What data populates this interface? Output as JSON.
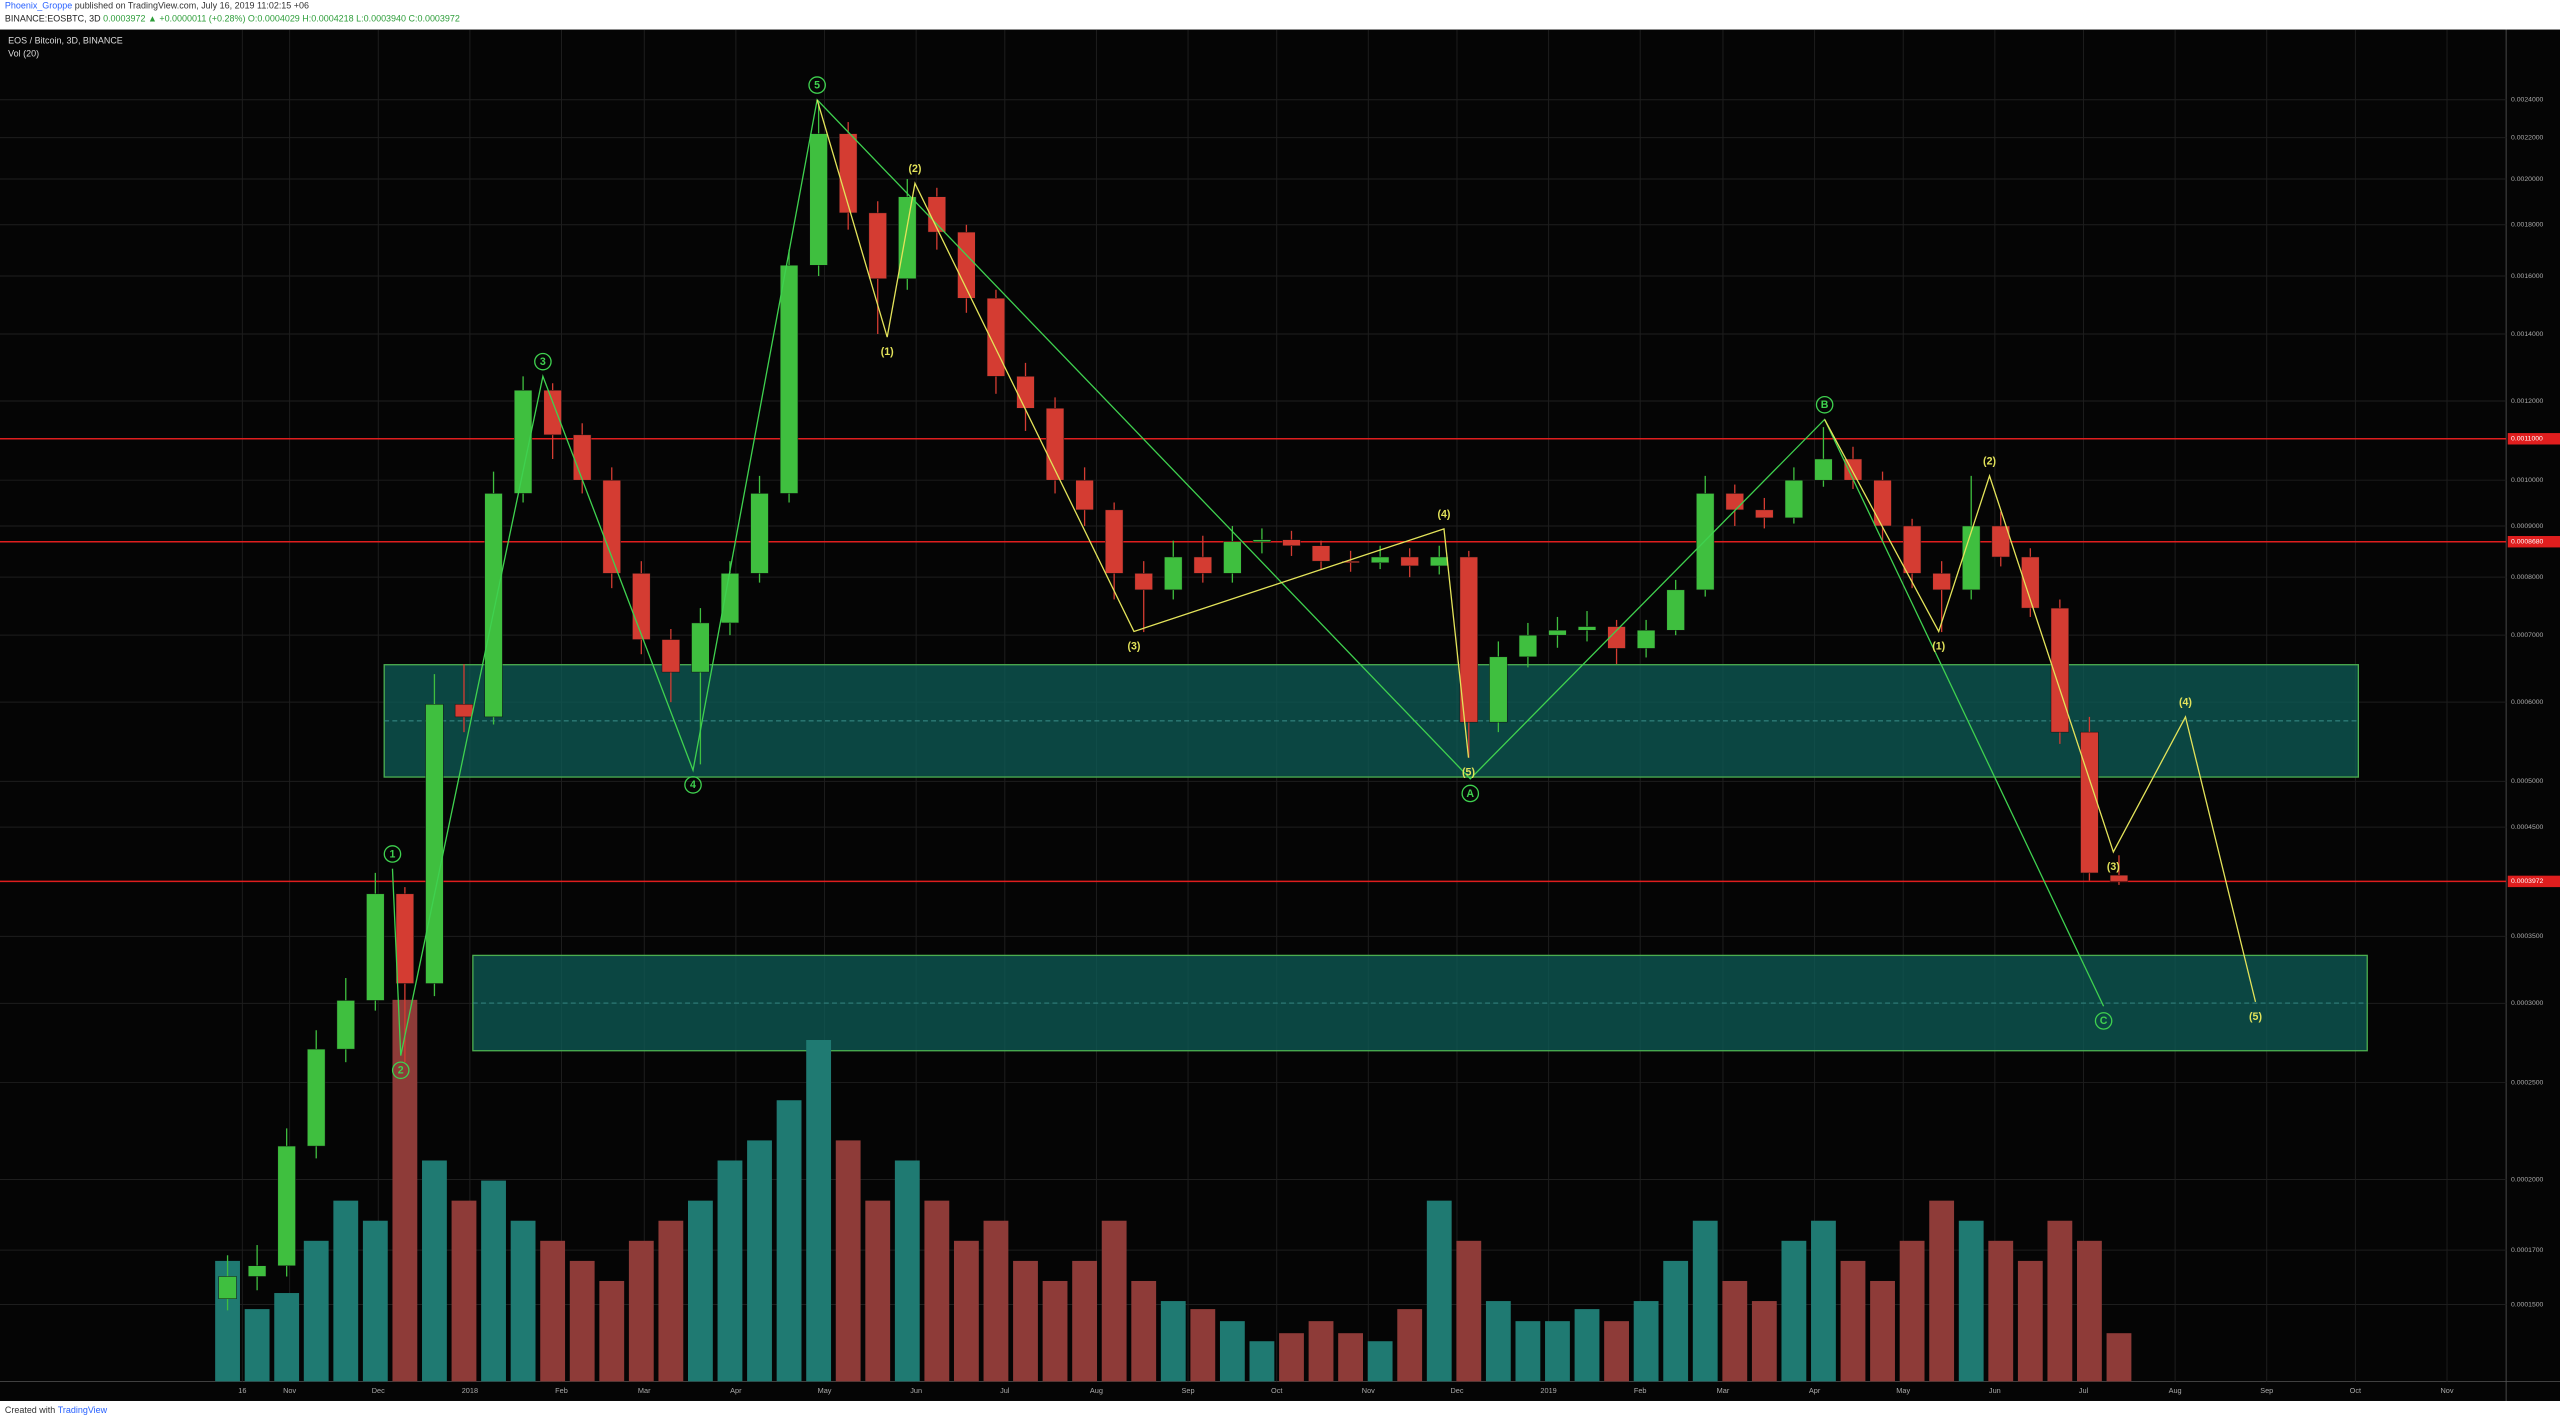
{
  "header": {
    "author": "Phoenix_Groppe",
    "published": "published on TradingView.com, July 16, 2019 11:02:15 +06",
    "symbol": "BINANCE:EOSBTC, 3D",
    "quote": "0.0003972 ▲ +0.0000011 (+0.28%) O:0.0004029 H:0.0004218 L:0.0003940 C:0.0003972"
  },
  "footer": {
    "prefix": "Created with",
    "brand": "TradingView"
  },
  "chart_data": {
    "type": "candlestick",
    "title": "EOS / Bitcoin, 3D, BINANCE",
    "subtitle": "Vol (20)",
    "log_scale": true,
    "grid": true,
    "up_color": "#3fbf3f",
    "down_color": "#d43c32",
    "volume_up_color": "#1f7a72",
    "volume_down_color": "#8e3b38",
    "x": [
      -5,
      5,
      15,
      25,
      35,
      45,
      55,
      65,
      75,
      85,
      95,
      105,
      115,
      125,
      135,
      145,
      155,
      165,
      175,
      185,
      195,
      205,
      215,
      225,
      235,
      245,
      255,
      265,
      275,
      285,
      295,
      305,
      315,
      325,
      335,
      345,
      355,
      365,
      375,
      385,
      395,
      405,
      415,
      425,
      435,
      445,
      455,
      465,
      475,
      485,
      495,
      505,
      515,
      525,
      535,
      545,
      555,
      565,
      575,
      585,
      595,
      605,
      615,
      625,
      635
    ],
    "open": [
      0.000152,
      0.00016,
      0.000164,
      0.000216,
      0.00027,
      0.000302,
      0.000386,
      0.000314,
      0.000597,
      0.00058,
      0.00097,
      0.00123,
      0.00111,
      0.001,
      0.000807,
      0.000693,
      0.000643,
      0.00072,
      0.000807,
      0.00097,
      0.00164,
      0.00222,
      0.00185,
      0.00159,
      0.00192,
      0.00177,
      0.00152,
      0.00127,
      0.00118,
      0.001,
      0.000934,
      0.000807,
      0.000777,
      0.000838,
      0.000807,
      0.000868,
      0.000872,
      0.00086,
      0.00083,
      0.000827,
      0.000838,
      0.000821,
      0.000838,
      0.000573,
      0.000666,
      0.0007,
      0.000708,
      0.000714,
      0.000679,
      0.000708,
      0.000777,
      0.00097,
      0.000934,
      0.000917,
      0.001,
      0.00105,
      0.001,
      0.0009,
      0.000807,
      0.000777,
      0.0009,
      0.000838,
      0.000745,
      0.00056,
      0.0004029
    ],
    "high": [
      0.000168,
      0.000172,
      0.000225,
      0.000282,
      0.000318,
      0.000405,
      0.000392,
      0.00064,
      0.000655,
      0.00102,
      0.00127,
      0.00125,
      0.00114,
      0.00103,
      0.00083,
      0.00071,
      0.000745,
      0.00083,
      0.00101,
      0.0017,
      0.00238,
      0.00228,
      0.0019,
      0.002,
      0.00196,
      0.0018,
      0.00155,
      0.00131,
      0.00121,
      0.00103,
      0.00095,
      0.00083,
      0.00087,
      0.00088,
      0.0009,
      0.000895,
      0.00089,
      0.00087,
      0.00085,
      0.00086,
      0.000855,
      0.00086,
      0.00085,
      0.00069,
      0.00072,
      0.00073,
      0.00074,
      0.000725,
      0.000725,
      0.000795,
      0.00101,
      0.00099,
      0.00096,
      0.00103,
      0.00113,
      0.00108,
      0.00102,
      0.000915,
      0.00083,
      0.00101,
      0.00093,
      0.000855,
      0.00076,
      0.00058,
      0.0004218
    ],
    "low": [
      0.000148,
      0.000155,
      0.00016,
      0.00021,
      0.000262,
      0.000295,
      0.000262,
      0.000305,
      0.00056,
      0.00057,
      0.00095,
      0.00105,
      0.00097,
      0.00078,
      0.00067,
      0.0006,
      0.00052,
      0.0007,
      0.00079,
      0.00095,
      0.0016,
      0.00178,
      0.0014,
      0.00155,
      0.0017,
      0.00147,
      0.00122,
      0.00112,
      0.00097,
      0.0009,
      0.00076,
      0.000705,
      0.00076,
      0.00079,
      0.00079,
      0.000845,
      0.00084,
      0.000815,
      0.00081,
      0.000815,
      0.0008,
      0.000805,
      0.000528,
      0.00056,
      0.00065,
      0.00068,
      0.00069,
      0.000655,
      0.000665,
      0.0007,
      0.000765,
      0.0009,
      0.000895,
      0.000905,
      0.000985,
      0.00098,
      0.00087,
      0.00078,
      0.000705,
      0.00076,
      0.00082,
      0.00073,
      0.000545,
      0.000398,
      0.000394
    ],
    "close": [
      0.00016,
      0.000164,
      0.000216,
      0.00027,
      0.000302,
      0.000386,
      0.000314,
      0.000597,
      0.00058,
      0.00097,
      0.00123,
      0.00111,
      0.001,
      0.000807,
      0.000693,
      0.000643,
      0.00072,
      0.000807,
      0.00097,
      0.00164,
      0.00222,
      0.00185,
      0.00159,
      0.00192,
      0.00177,
      0.00152,
      0.00127,
      0.00118,
      0.001,
      0.000934,
      0.000807,
      0.000777,
      0.000838,
      0.000807,
      0.000868,
      0.000872,
      0.00086,
      0.00083,
      0.000827,
      0.000838,
      0.000821,
      0.000838,
      0.000573,
      0.000666,
      0.0007,
      0.000708,
      0.000714,
      0.000679,
      0.000708,
      0.000777,
      0.00097,
      0.000934,
      0.000917,
      0.001,
      0.00105,
      0.001,
      0.0009,
      0.000807,
      0.000777,
      0.0009,
      0.000838,
      0.000745,
      0.00056,
      0.000405,
      0.0003972
    ],
    "volume": [
      30,
      18,
      22,
      35,
      45,
      40,
      95,
      55,
      45,
      50,
      40,
      35,
      30,
      25,
      35,
      40,
      45,
      55,
      60,
      70,
      85,
      60,
      45,
      55,
      45,
      35,
      40,
      30,
      25,
      30,
      40,
      25,
      20,
      18,
      15,
      10,
      12,
      15,
      12,
      10,
      18,
      45,
      35,
      20,
      15,
      15,
      18,
      15,
      20,
      30,
      40,
      25,
      20,
      35,
      40,
      30,
      25,
      35,
      45,
      40,
      35,
      30,
      40,
      35,
      12
    ],
    "vlim": [
      0,
      100
    ],
    "xlim": [
      -82,
      766
    ],
    "xticks": [
      {
        "value": 0,
        "label": "16"
      },
      {
        "value": 16,
        "label": "Nov"
      },
      {
        "value": 46,
        "label": "Dec"
      },
      {
        "value": 77,
        "label": "2018"
      },
      {
        "value": 108,
        "label": "Feb"
      },
      {
        "value": 136,
        "label": "Mar"
      },
      {
        "value": 167,
        "label": "Apr"
      },
      {
        "value": 197,
        "label": "May"
      },
      {
        "value": 228,
        "label": "Jun"
      },
      {
        "value": 258,
        "label": "Jul"
      },
      {
        "value": 289,
        "label": "Aug"
      },
      {
        "value": 320,
        "label": "Sep"
      },
      {
        "value": 350,
        "label": "Oct"
      },
      {
        "value": 381,
        "label": "Nov"
      },
      {
        "value": 411,
        "label": "Dec"
      },
      {
        "value": 442,
        "label": "2019"
      },
      {
        "value": 473,
        "label": "Feb"
      },
      {
        "value": 501,
        "label": "Mar"
      },
      {
        "value": 532,
        "label": "Apr"
      },
      {
        "value": 562,
        "label": "May"
      },
      {
        "value": 593,
        "label": "Jun"
      },
      {
        "value": 623,
        "label": "Jul"
      },
      {
        "value": 654,
        "label": "Aug"
      },
      {
        "value": 685,
        "label": "Sep"
      },
      {
        "value": 715,
        "label": "Oct"
      },
      {
        "value": 746,
        "label": "Nov"
      }
    ],
    "ylim": [
      0.00013,
      0.0028
    ],
    "yticks": [
      {
        "value": 0.0024,
        "label": "0.0024000"
      },
      {
        "value": 0.0022,
        "label": "0.0022000"
      },
      {
        "value": 0.002,
        "label": "0.0020000"
      },
      {
        "value": 0.0018,
        "label": "0.0018000"
      },
      {
        "value": 0.0016,
        "label": "0.0016000"
      },
      {
        "value": 0.0014,
        "label": "0.0014000"
      },
      {
        "value": 0.0012,
        "label": "0.0012000"
      },
      {
        "value": 0.001,
        "label": "0.0010000"
      },
      {
        "value": 0.0009,
        "label": "0.0009000"
      },
      {
        "value": 0.0008,
        "label": "0.0008000"
      },
      {
        "value": 0.0007,
        "label": "0.0007000"
      },
      {
        "value": 0.0006,
        "label": "0.0006000"
      },
      {
        "value": 0.0005,
        "label": "0.0005000"
      },
      {
        "value": 0.00045,
        "label": "0.0004500"
      },
      {
        "value": 0.00035,
        "label": "0.0003500"
      },
      {
        "value": 0.0003,
        "label": "0.0003000"
      },
      {
        "value": 0.00025,
        "label": "0.0002500"
      },
      {
        "value": 0.0002,
        "label": "0.0002000"
      },
      {
        "value": 0.00017,
        "label": "0.0001700"
      },
      {
        "value": 0.00015,
        "label": "0.0001500"
      }
    ],
    "levels": [
      {
        "value": 0.0011,
        "label": "0.0011000",
        "color": "#e01e1e"
      },
      {
        "value": 0.000868,
        "label": "0.0008680",
        "color": "#e01e1e"
      },
      {
        "value": 0.0003972,
        "label": "0.0003972",
        "color": "#e01e1e"
      }
    ],
    "zones": [
      {
        "x": [
          48,
          716
        ],
        "y": [
          0.000505,
          0.000654
        ]
      },
      {
        "x": [
          78,
          719
        ],
        "y": [
          0.000269,
          0.000335
        ]
      }
    ],
    "zone_fill": "#0d5c57",
    "zone_border": "#4caf50",
    "waves": [
      {
        "style": "circle",
        "color": "#3fd14f",
        "points": [
          [
            50.8,
            0.000409
          ],
          [
            53.6,
            0.000266
          ],
          [
            101.7,
            0.00127
          ],
          [
            152.5,
            0.000513
          ],
          [
            194.5,
            0.0024
          ],
          [
            415.5,
            0.000503
          ],
          [
            535.4,
            0.00115
          ],
          [
            629.8,
            0.000298
          ]
        ],
        "labels": [
          "1",
          "2",
          "3",
          "4",
          "5",
          "A",
          "B",
          "C"
        ]
      },
      {
        "style": "paren",
        "color": "#e3e35a",
        "points": [
          [
            194.5,
            0.0024
          ],
          [
            218.2,
            0.00139
          ],
          [
            227.6,
            0.00198
          ],
          [
            301.7,
            0.000706
          ],
          [
            406.6,
            0.000894
          ],
          [
            414.9,
            0.000528
          ]
        ],
        "labels": [
          null,
          "(1)",
          "(2)",
          "(3)",
          "(4)",
          "(5)"
        ]
      },
      {
        "style": "paren",
        "color": "#e3e35a",
        "points": [
          [
            535.4,
            0.00115
          ],
          [
            574.0,
            0.000706
          ],
          [
            591.2,
            0.00101
          ],
          [
            633.1,
            0.000425
          ],
          [
            657.5,
            0.00058
          ],
          [
            681.2,
            0.000301
          ]
        ],
        "labels": [
          null,
          "(1)",
          "(2)",
          "(3)",
          "(4)",
          "(5)"
        ]
      }
    ]
  }
}
